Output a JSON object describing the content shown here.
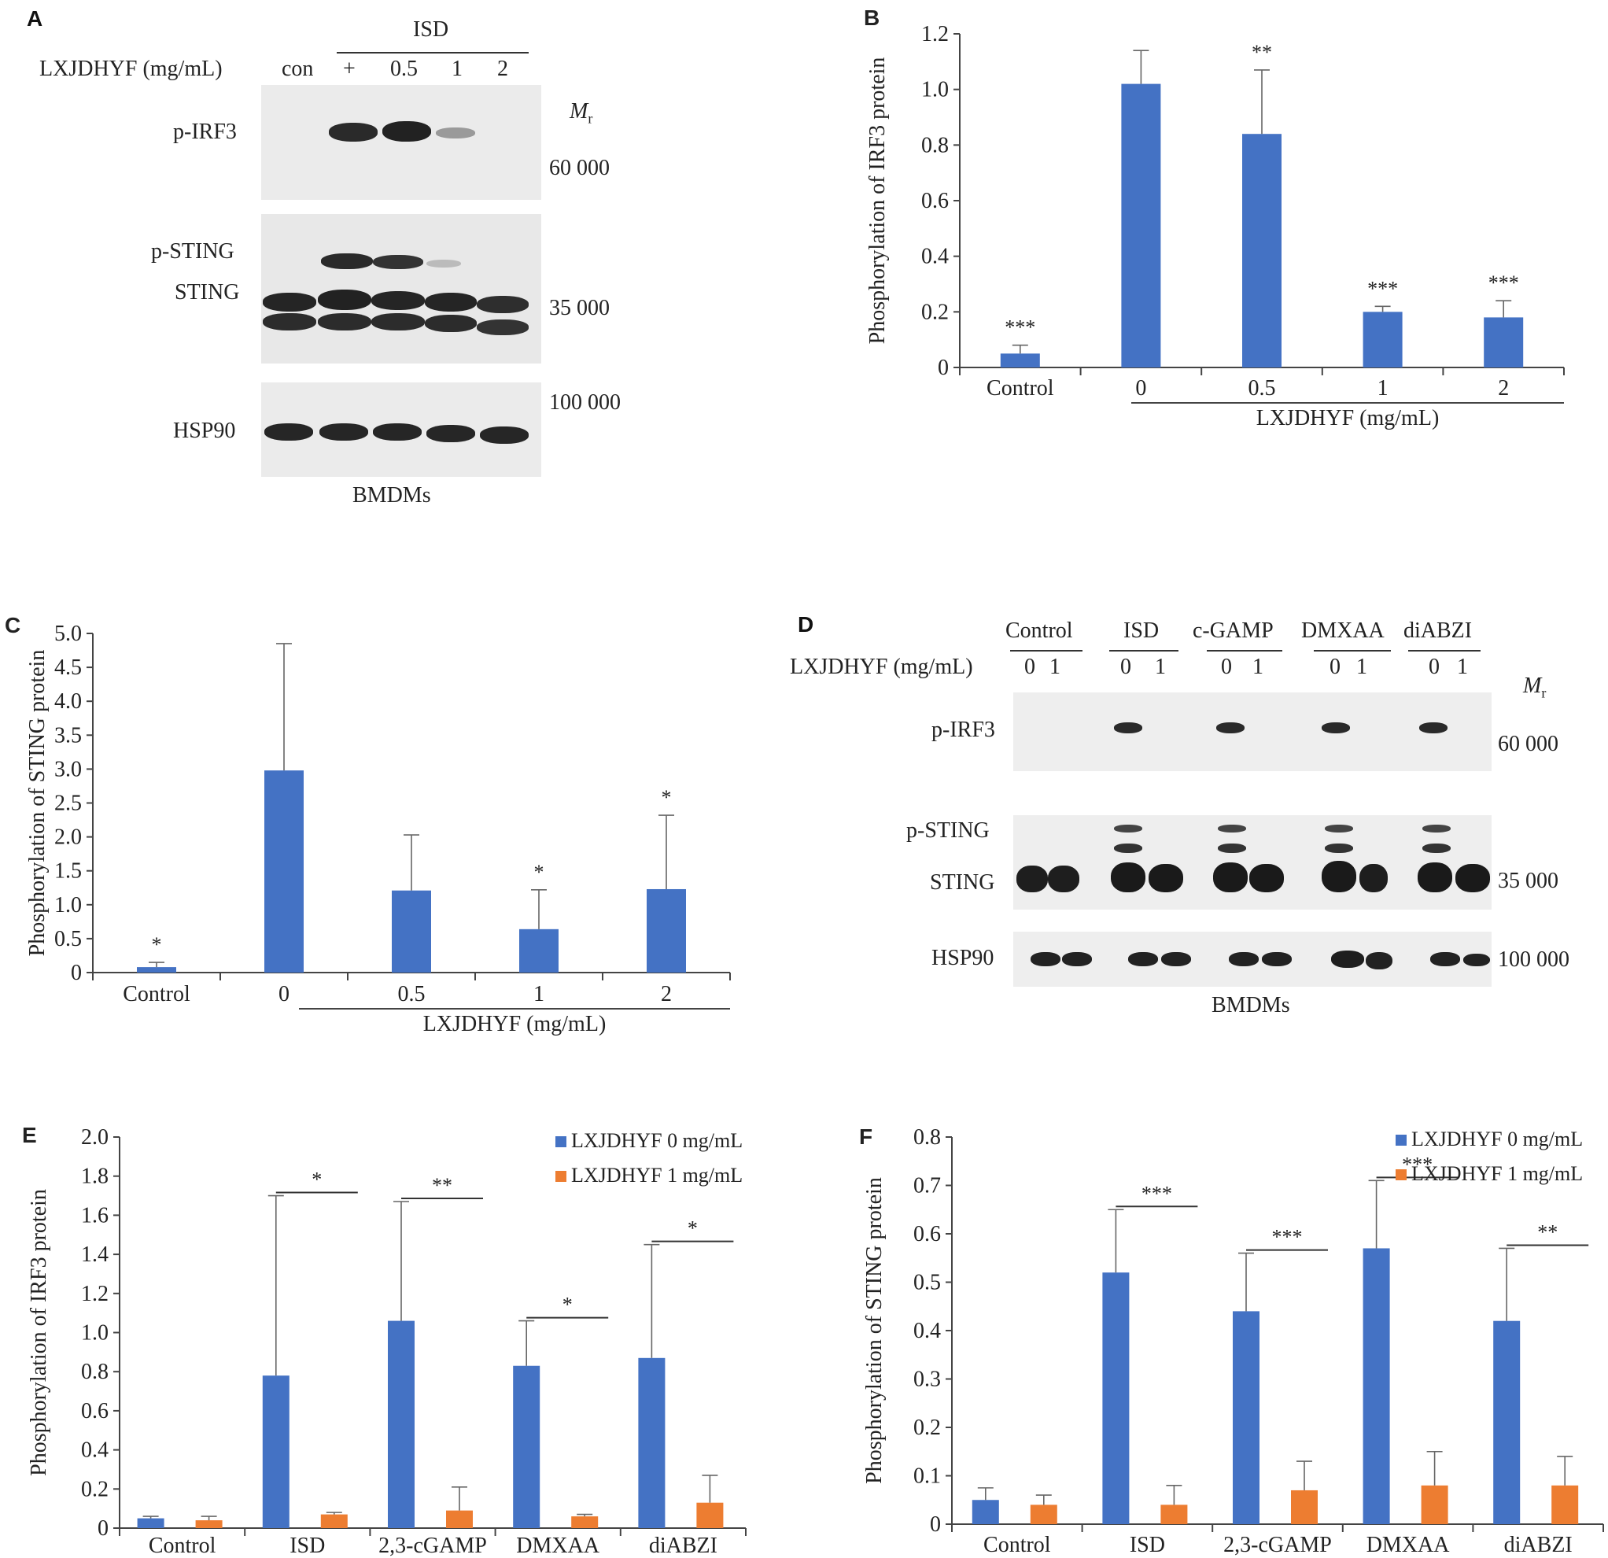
{
  "panels": {
    "A": {
      "label": "A",
      "header_treatment": "ISD",
      "row_label": "LXJDHYF (mg/mL)",
      "lanes": [
        "con",
        "+",
        "0.5",
        "1",
        "2"
      ],
      "mr_symbol": "M",
      "mr_sub": "r",
      "rows": {
        "pirf3": "p-IRF3",
        "psting": "p-STING",
        "sting": "STING",
        "hsp90": "HSP90"
      },
      "markers": {
        "m60": "60 000",
        "m35": "35 000",
        "m100": "100 000"
      },
      "cell_label": "BMDMs"
    },
    "D": {
      "label": "D",
      "groups": [
        "Control",
        "ISD",
        "c-GAMP",
        "DMXAA",
        "diABZI"
      ],
      "row_label": "LXJDHYF (mg/mL)",
      "lanes": [
        "0",
        "1",
        "0",
        "1",
        "0",
        "1",
        "0",
        "1",
        "0",
        "1"
      ],
      "mr_symbol": "M",
      "mr_sub": "r",
      "rows": {
        "pirf3": "p-IRF3",
        "psting": "p-STING",
        "sting": "STING",
        "hsp90": "HSP90"
      },
      "markers": {
        "m60": "60 000",
        "m35": "35 000",
        "m100": "100 000"
      },
      "cell_label": "BMDMs"
    }
  },
  "colors": {
    "blue": "#4472c4",
    "orange": "#ed7d31"
  },
  "chart_data": [
    {
      "id": "B",
      "type": "bar",
      "label": "B",
      "ylabel": "Phosphorylation of IRF3 protein",
      "xlabel": "LXJDHYF (mg/mL)",
      "categories": [
        "Control",
        "0",
        "0.5",
        "1",
        "2"
      ],
      "values": [
        0.05,
        1.02,
        0.84,
        0.2,
        0.18
      ],
      "errors": [
        0.03,
        0.12,
        0.23,
        0.02,
        0.06
      ],
      "annotations": [
        "***",
        "",
        "**",
        "***",
        "***"
      ],
      "yticks": [
        "0",
        "0.2",
        "0.4",
        "0.6",
        "0.8",
        "1.0",
        "1.2"
      ],
      "ylim": [
        0,
        1.2
      ]
    },
    {
      "id": "C",
      "type": "bar",
      "label": "C",
      "ylabel": "Phosphorylation of STING protein",
      "xlabel": "LXJDHYF (mg/mL)",
      "categories": [
        "Control",
        "0",
        "0.5",
        "1",
        "2"
      ],
      "values": [
        0.08,
        2.98,
        1.21,
        0.64,
        1.23
      ],
      "errors": [
        0.07,
        1.87,
        0.82,
        0.58,
        1.09
      ],
      "annotations": [
        "*",
        "",
        "",
        "*",
        "*"
      ],
      "yticks": [
        "0",
        "0.5",
        "1.0",
        "1.5",
        "2.0",
        "2.5",
        "3.0",
        "3.5",
        "4.0",
        "4.5",
        "5.0"
      ],
      "ylim": [
        0,
        5.0
      ]
    },
    {
      "id": "E",
      "type": "bar",
      "label": "E",
      "ylabel": "Phosphorylation of IRF3 protein",
      "categories": [
        "Control",
        "ISD",
        "2,3-cGAMP",
        "DMXAA",
        "diABZI"
      ],
      "series": [
        {
          "name": "LXJDHYF 0 mg/mL",
          "values": [
            0.05,
            0.78,
            1.06,
            0.83,
            0.87
          ],
          "errors": [
            0.01,
            0.92,
            0.61,
            0.23,
            0.58
          ]
        },
        {
          "name": "LXJDHYF 1 mg/mL",
          "values": [
            0.04,
            0.07,
            0.09,
            0.06,
            0.13
          ],
          "errors": [
            0.02,
            0.01,
            0.12,
            0.01,
            0.14
          ]
        }
      ],
      "annotations": [
        "",
        "*",
        "**",
        "*",
        "*"
      ],
      "yticks": [
        "0",
        "0.2",
        "0.4",
        "0.6",
        "0.8",
        "1.0",
        "1.2",
        "1.4",
        "1.6",
        "1.8",
        "2.0"
      ],
      "ylim": [
        0,
        2.0
      ]
    },
    {
      "id": "F",
      "type": "bar",
      "label": "F",
      "ylabel": "Phosphorylation of STING protein",
      "categories": [
        "Control",
        "ISD",
        "2,3-cGAMP",
        "DMXAA",
        "diABZI"
      ],
      "series": [
        {
          "name": "LXJDHYF 0 mg/mL",
          "values": [
            0.05,
            0.52,
            0.44,
            0.57,
            0.42
          ],
          "errors": [
            0.025,
            0.13,
            0.12,
            0.14,
            0.15
          ]
        },
        {
          "name": "LXJDHYF 1 mg/mL",
          "values": [
            0.04,
            0.04,
            0.07,
            0.08,
            0.08
          ],
          "errors": [
            0.02,
            0.04,
            0.06,
            0.07,
            0.06
          ]
        }
      ],
      "annotations": [
        "",
        "***",
        "***",
        "***",
        "**"
      ],
      "yticks": [
        "0",
        "0.1",
        "0.2",
        "0.3",
        "0.4",
        "0.5",
        "0.6",
        "0.7",
        "0.8"
      ],
      "ylim": [
        0,
        0.8
      ]
    }
  ]
}
